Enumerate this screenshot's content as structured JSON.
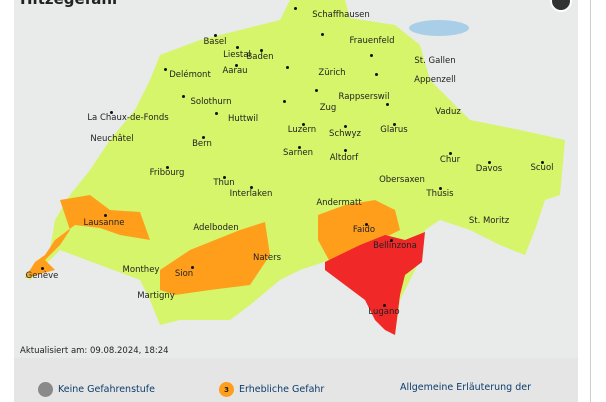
{
  "title": "Hitzegefahr",
  "updated": "Aktualisiert am: 09.08.2024, 18:24",
  "colors": {
    "level1": "#d6f56a",
    "level3": "#ff9e1b",
    "level4": "#f02828",
    "none": "#8a8a8a",
    "background": "#e9eaea",
    "lake": "#a9cfe8"
  },
  "cities": [
    "Schaffhausen",
    "Basel",
    "Liestal",
    "Frauenfeld",
    "Baden",
    "Delémont",
    "Aarau",
    "Zürich",
    "St. Gallen",
    "Appenzell",
    "Solothurn",
    "Rappserswil",
    "Zug",
    "Vaduz",
    "La Chaux-de-Fonds",
    "Huttwil",
    "Luzern",
    "Schwyz",
    "Glarus",
    "Neuchâtel",
    "Bern",
    "Sarnen",
    "Altdorf",
    "Chur",
    "Davos",
    "Scuol",
    "Fribourg",
    "Obersaxen",
    "Thun",
    "Interlaken",
    "Thusis",
    "Andermatt",
    "Lausanne",
    "Faido",
    "Adelboden",
    "St. Moritz",
    "Genève",
    "Monthey",
    "Sion",
    "Naters",
    "Bellinzona",
    "Martigny",
    "Lugano"
  ],
  "legend": [
    {
      "label": "Keine Gefahrenstufe",
      "badge": "",
      "icon": "grey-circle-icon"
    },
    {
      "label": "Erhebliche Gefahr",
      "badge": "3",
      "icon": "orange-circle-icon"
    }
  ],
  "link": "Allgemeine Erläuterung der"
}
